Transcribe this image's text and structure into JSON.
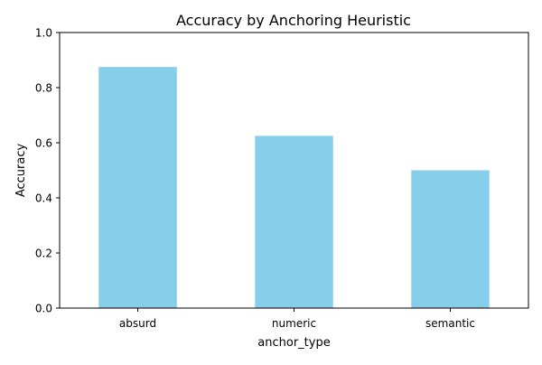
{
  "chart_data": {
    "type": "bar",
    "title": "Accuracy by Anchoring Heuristic",
    "xlabel": "anchor_type",
    "ylabel": "Accuracy",
    "categories": [
      "absurd",
      "numeric",
      "semantic"
    ],
    "values": [
      0.875,
      0.625,
      0.5
    ],
    "ylim": [
      0,
      1.0
    ],
    "yticks": [
      "0.0",
      "0.2",
      "0.4",
      "0.6",
      "0.8",
      "1.0"
    ],
    "bar_color": "#87ceeb",
    "grid": false,
    "legend": "none"
  }
}
